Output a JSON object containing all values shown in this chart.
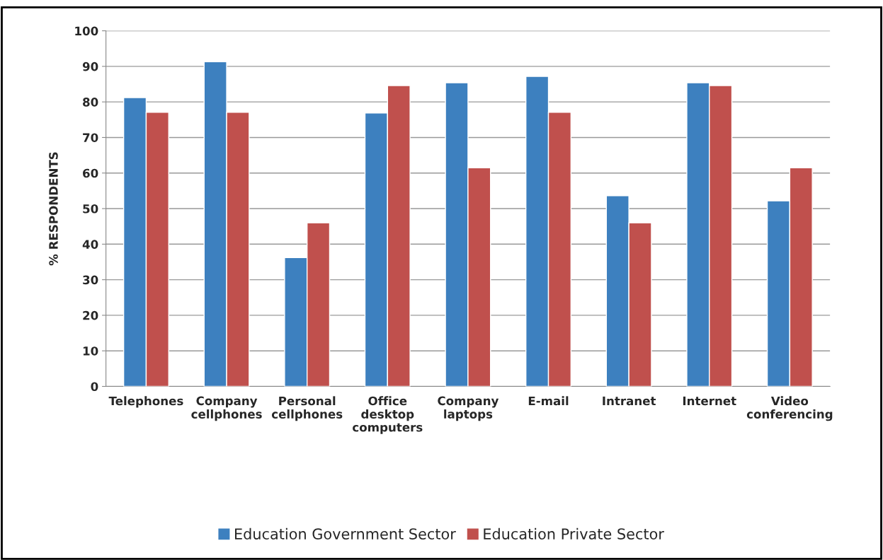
{
  "chart_data": {
    "type": "bar",
    "ylabel": "% RESPONDENTS",
    "categories": [
      "Telephones",
      "Company\ncellphones",
      "Personal\ncellphones",
      "Office\ndesktop\ncomputers",
      "Company\nlaptops",
      "E-mail",
      "Intranet",
      "Internet",
      "Video\nconferencing"
    ],
    "series": [
      {
        "name": "Education Government Sector",
        "color": "#3d80bf",
        "values": [
          81.2,
          91.3,
          36.2,
          76.9,
          85.4,
          87.2,
          53.6,
          85.4,
          52.2
        ]
      },
      {
        "name": "Education Private Sector",
        "color": "#c0504d",
        "values": [
          77.1,
          77.1,
          46.0,
          84.6,
          61.5,
          77.1,
          46.0,
          84.6,
          61.5
        ]
      }
    ],
    "ylim": [
      0,
      100
    ],
    "yticks": [
      0,
      10,
      20,
      30,
      40,
      50,
      60,
      70,
      80,
      90,
      100
    ],
    "grid": "y",
    "legend": "bottom"
  }
}
